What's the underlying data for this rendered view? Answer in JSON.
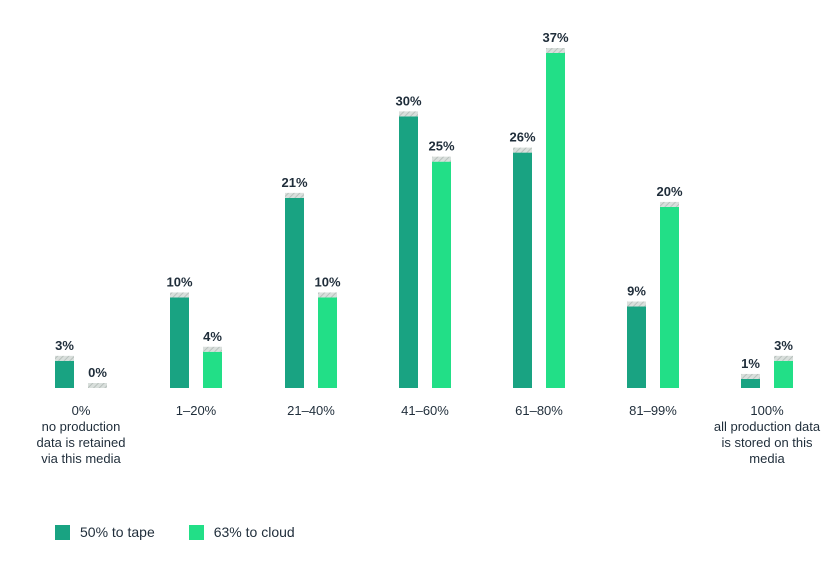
{
  "colors": {
    "tape": "#19a382",
    "cloud": "#22df87",
    "cap": "#cfd6d3",
    "text": "#1f2d3a"
  },
  "chart_data": {
    "type": "bar",
    "categories": [
      [
        "0%",
        "no production",
        "data is retained",
        "via this media"
      ],
      [
        "1–20%"
      ],
      [
        "21–40%"
      ],
      [
        "41–60%"
      ],
      [
        "61–80%"
      ],
      [
        "81–99%"
      ],
      [
        "100%",
        "all production data",
        "is stored on this",
        "media"
      ]
    ],
    "series": [
      {
        "name": "50% to tape",
        "values": [
          3,
          10,
          21,
          30,
          26,
          9,
          1
        ],
        "labels": [
          "3%",
          "10%",
          "21%",
          "30%",
          "26%",
          "9%",
          "1%"
        ]
      },
      {
        "name": "63% to cloud",
        "values": [
          0,
          4,
          10,
          25,
          37,
          20,
          3
        ],
        "labels": [
          "0%",
          "4%",
          "10%",
          "25%",
          "37%",
          "20%",
          "3%"
        ]
      }
    ],
    "title": "",
    "xlabel": "",
    "ylabel": "",
    "ylim": [
      0,
      37
    ],
    "grid": false,
    "legend": "bottom-left"
  }
}
